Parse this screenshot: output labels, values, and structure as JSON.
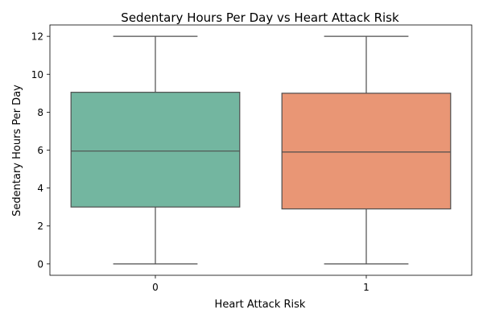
{
  "chart_data": {
    "type": "box",
    "title": "Sedentary Hours Per Day vs Heart Attack Risk",
    "xlabel": "Heart Attack Risk",
    "ylabel": "Sedentary Hours Per Day",
    "ylim": [
      -0.6,
      12.6
    ],
    "yticks": [
      0,
      2,
      4,
      6,
      8,
      10,
      12
    ],
    "grid": false,
    "categories": [
      "0",
      "1"
    ],
    "boxes": [
      {
        "category": "0",
        "whisker_low": 0,
        "q1": 3.0,
        "median": 5.95,
        "q3": 9.05,
        "whisker_high": 12,
        "color": "#73b6a0"
      },
      {
        "category": "1",
        "whisker_low": 0,
        "q1": 2.9,
        "median": 5.9,
        "q3": 9.0,
        "whisker_high": 12,
        "color": "#e99675"
      }
    ]
  }
}
